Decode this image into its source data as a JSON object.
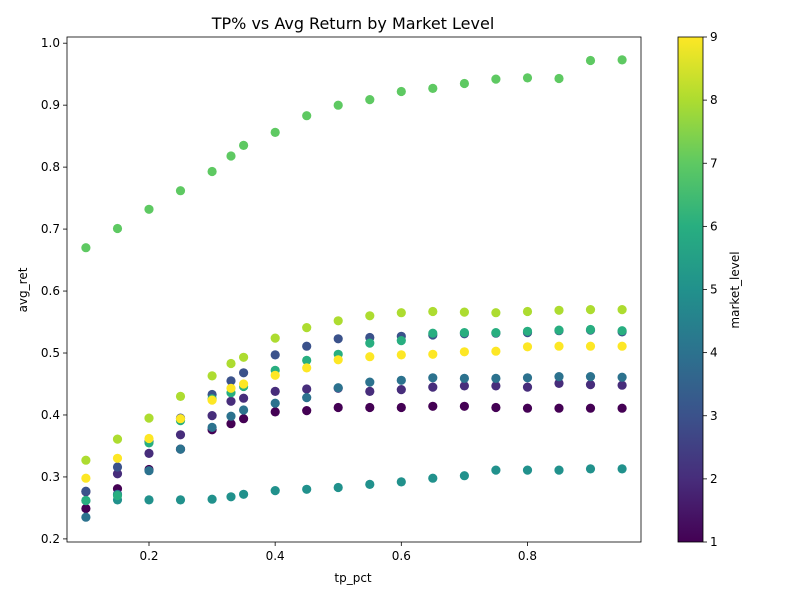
{
  "chart_data": {
    "type": "scatter",
    "title": "TP% vs Avg Return by Market Level",
    "xlabel": "tp_pct",
    "ylabel": "avg_ret",
    "xlim": [
      0.07,
      0.98
    ],
    "ylim": [
      0.195,
      1.01
    ],
    "x_ticks": [
      0.2,
      0.4,
      0.6,
      0.8
    ],
    "x_tick_labels": [
      "0.2",
      "0.4",
      "0.6",
      "0.8"
    ],
    "y_ticks": [
      0.2,
      0.3,
      0.4,
      0.5,
      0.6,
      0.7,
      0.8,
      0.9,
      1.0
    ],
    "y_tick_labels": [
      "0.2",
      "0.3",
      "0.4",
      "0.5",
      "0.6",
      "0.7",
      "0.8",
      "0.9",
      "1.0"
    ],
    "grid": false,
    "legend": "none",
    "colorbar": {
      "label": "market_level",
      "colormap": "viridis",
      "range": [
        1,
        9
      ],
      "ticks": [
        1,
        2,
        3,
        4,
        5,
        6,
        7,
        8,
        9
      ],
      "tick_labels": [
        "1",
        "2",
        "3",
        "4",
        "5",
        "6",
        "7",
        "8",
        "9"
      ]
    },
    "x": [
      0.1,
      0.15,
      0.2,
      0.25,
      0.3,
      0.33,
      0.35,
      0.4,
      0.45,
      0.5,
      0.55,
      0.6,
      0.65,
      0.7,
      0.75,
      0.8,
      0.85,
      0.9,
      0.95
    ],
    "series": [
      {
        "level": 1,
        "values": [
          0.249,
          0.281,
          0.312,
          0.345,
          0.376,
          0.386,
          0.394,
          0.405,
          0.407,
          0.412,
          0.412,
          0.412,
          0.414,
          0.414,
          0.412,
          0.411,
          0.411,
          0.411,
          0.411
        ]
      },
      {
        "level": 2,
        "values": [
          0.276,
          0.305,
          0.338,
          0.368,
          0.399,
          0.422,
          0.427,
          0.438,
          0.442,
          0.443,
          0.438,
          0.441,
          0.445,
          0.447,
          0.447,
          0.445,
          0.451,
          0.449,
          0.448
        ]
      },
      {
        "level": 3,
        "values": [
          0.277,
          0.316,
          0.357,
          0.395,
          0.433,
          0.455,
          0.468,
          0.497,
          0.511,
          0.523,
          0.525,
          0.527,
          0.529,
          0.531,
          0.532,
          0.533,
          0.536,
          0.537,
          0.534
        ]
      },
      {
        "level": 4,
        "values": [
          0.235,
          0.272,
          0.31,
          0.345,
          0.38,
          0.398,
          0.408,
          0.419,
          0.428,
          0.444,
          0.453,
          0.456,
          0.46,
          0.459,
          0.459,
          0.46,
          0.462,
          0.462,
          0.461
        ]
      },
      {
        "level": 5,
        "values": [
          0.262,
          0.263,
          0.263,
          0.263,
          0.264,
          0.268,
          0.272,
          0.278,
          0.28,
          0.283,
          0.288,
          0.292,
          0.298,
          0.302,
          0.311,
          0.311,
          0.311,
          0.313,
          0.313
        ]
      },
      {
        "level": 6,
        "values": [
          0.262,
          0.27,
          0.355,
          0.391,
          0.426,
          0.436,
          0.446,
          0.472,
          0.488,
          0.498,
          0.516,
          0.52,
          0.532,
          0.533,
          0.533,
          0.535,
          0.537,
          0.538,
          0.536
        ]
      },
      {
        "level": 7,
        "values": [
          0.67,
          0.701,
          0.732,
          0.762,
          0.793,
          0.818,
          0.835,
          0.856,
          0.883,
          0.9,
          0.909,
          0.922,
          0.927,
          0.935,
          0.942,
          0.944,
          0.943,
          0.972,
          0.973
        ]
      },
      {
        "level": 8,
        "values": [
          0.327,
          0.361,
          0.395,
          0.43,
          0.463,
          0.483,
          0.493,
          0.524,
          0.541,
          0.552,
          0.56,
          0.565,
          0.567,
          0.566,
          0.565,
          0.567,
          0.569,
          0.57,
          0.57
        ]
      },
      {
        "level": 9,
        "values": [
          0.298,
          0.33,
          0.362,
          0.394,
          0.424,
          0.443,
          0.45,
          0.464,
          0.476,
          0.489,
          0.494,
          0.497,
          0.498,
          0.502,
          0.503,
          0.51,
          0.511,
          0.511,
          0.511
        ]
      }
    ]
  }
}
